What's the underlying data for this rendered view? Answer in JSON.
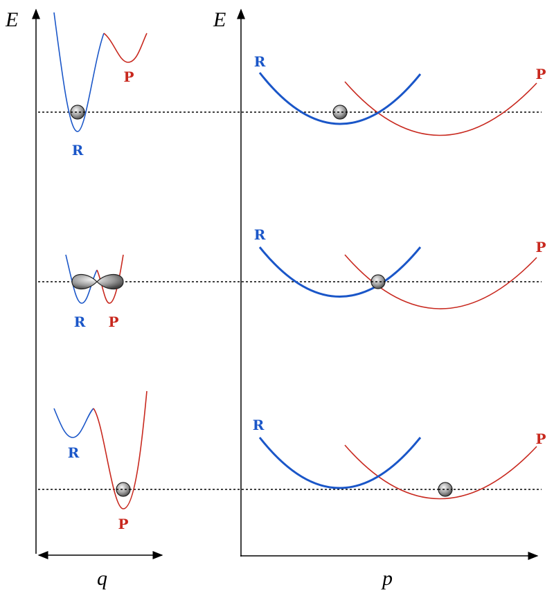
{
  "left_panel": {
    "axis_y_label": "E",
    "axis_x_label": "q",
    "rows": [
      {
        "reactant_label": "R",
        "product_label": "P"
      },
      {
        "reactant_label": "R",
        "product_label": "P"
      },
      {
        "reactant_label": "R",
        "product_label": "P"
      }
    ]
  },
  "right_panel": {
    "axis_y_label": "E",
    "axis_x_label": "p",
    "rows": [
      {
        "reactant_label": "R",
        "product_label": "P"
      },
      {
        "reactant_label": "R",
        "product_label": "P"
      },
      {
        "reactant_label": "R",
        "product_label": "P"
      }
    ]
  }
}
